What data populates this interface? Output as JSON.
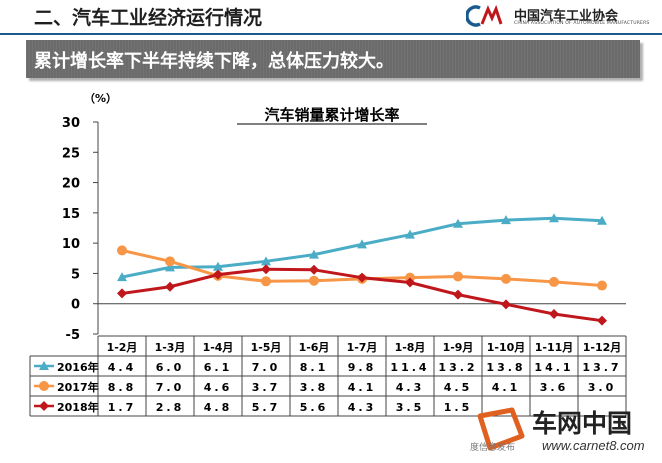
{
  "header": {
    "title": "二、汽车工业经济运行情况",
    "logo_cn": "中国汽车工业协会",
    "logo_en": "CHINA ASSOCIATION OF AUTOMOBILE MANUFACTURERS"
  },
  "banner": {
    "text": "累计增长率下半年持续下降，总体压力较大。"
  },
  "watermark": {
    "name": "车网中国",
    "url": "www.carnet8.com",
    "footer": "度信息发布"
  },
  "colors": {
    "2016": "#4bacc6",
    "2017": "#f79646",
    "2018": "#c0171c"
  },
  "chart_data": {
    "type": "line",
    "title": "汽车销量累计增长率",
    "ylabel": "（%）",
    "xlabel": "",
    "ylim": [
      -5,
      30
    ],
    "yticks": [
      -5,
      0,
      5,
      10,
      15,
      20,
      25,
      30
    ],
    "grid": false,
    "legend": "left, in data table",
    "categories": [
      "1-2月",
      "1-3月",
      "1-4月",
      "1-5月",
      "1-6月",
      "1-7月",
      "1-8月",
      "1-9月",
      "1-10月",
      "1-11月",
      "1-12月"
    ],
    "series": [
      {
        "name": "2016年",
        "marker": "triangle",
        "values": [
          4.4,
          6.0,
          6.1,
          7.0,
          8.1,
          9.8,
          11.4,
          13.2,
          13.8,
          14.1,
          13.7
        ],
        "labels": [
          "4.4",
          "6.0",
          "6.1",
          "7.0",
          "8.1",
          "9.8",
          "11.4",
          "13.2",
          "13.8",
          "14.1",
          "13.7"
        ]
      },
      {
        "name": "2017年",
        "marker": "circle",
        "values": [
          8.8,
          7.0,
          4.6,
          3.7,
          3.8,
          4.1,
          4.3,
          4.5,
          4.1,
          3.6,
          3.0
        ],
        "labels": [
          "8.8",
          "7.0",
          "4.6",
          "3.7",
          "3.8",
          "4.1",
          "4.3",
          "4.5",
          "4.1",
          "3.6",
          "3.0"
        ]
      },
      {
        "name": "2018年",
        "marker": "diamond",
        "values": [
          1.7,
          2.8,
          4.8,
          5.7,
          5.6,
          4.3,
          3.5,
          1.5,
          -0.1,
          -1.7,
          -2.8
        ],
        "labels": [
          "1.7",
          "2.8",
          "4.8",
          "5.7",
          "5.6",
          "4.3",
          "3.5",
          "1.5",
          "",
          "",
          ""
        ]
      }
    ]
  }
}
